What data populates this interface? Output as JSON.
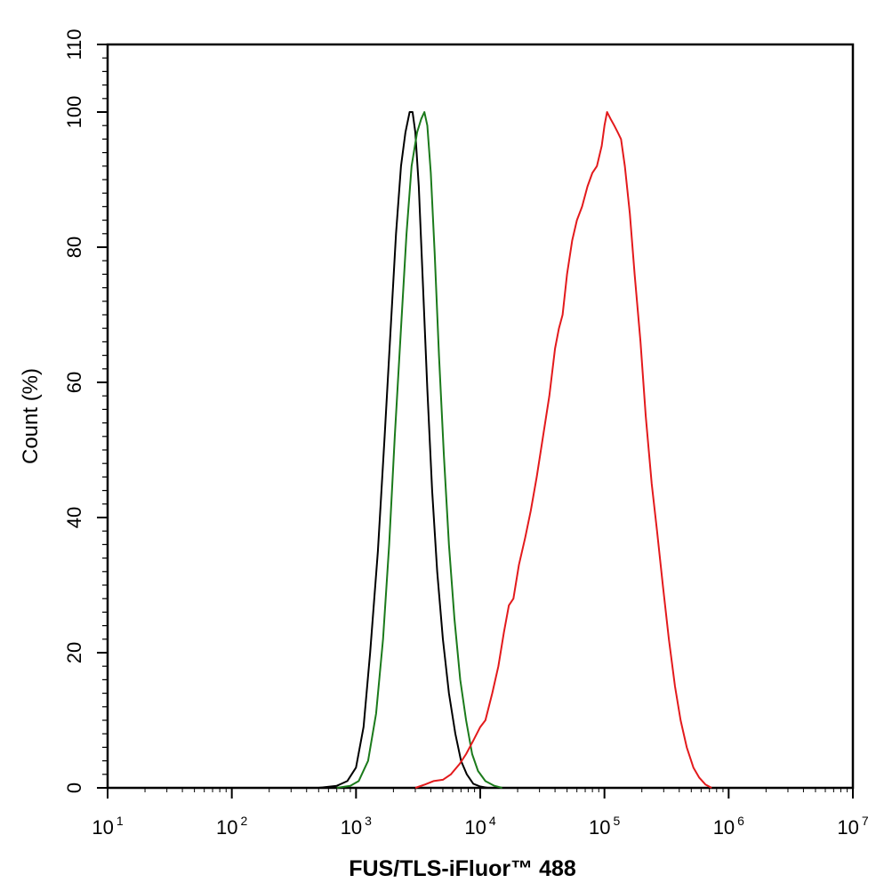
{
  "chart_data": {
    "type": "line",
    "title": "",
    "xlabel": "FUS/TLS-iFluor™ 488",
    "ylabel": "Count  (%)",
    "xscale": "log",
    "xlim": [
      10,
      10000000
    ],
    "ylim": [
      0,
      110
    ],
    "grid": false,
    "legend": "none",
    "x_ticks": [
      {
        "value": 10,
        "base": "10",
        "exp": "1"
      },
      {
        "value": 100,
        "base": "10",
        "exp": "2"
      },
      {
        "value": 1000,
        "base": "10",
        "exp": "3"
      },
      {
        "value": 10000,
        "base": "10",
        "exp": "4"
      },
      {
        "value": 100000,
        "base": "10",
        "exp": "5"
      },
      {
        "value": 1000000,
        "base": "10",
        "exp": "6"
      },
      {
        "value": 10000000,
        "base": "10",
        "exp": "7"
      }
    ],
    "y_ticks": [
      0,
      20,
      40,
      60,
      80,
      100,
      110
    ],
    "series": [
      {
        "color": "#000000",
        "points": [
          [
            500,
            0
          ],
          [
            700,
            0.3
          ],
          [
            850,
            1
          ],
          [
            1000,
            3
          ],
          [
            1150,
            9
          ],
          [
            1300,
            20
          ],
          [
            1500,
            35
          ],
          [
            1700,
            52
          ],
          [
            1900,
            68
          ],
          [
            2100,
            82
          ],
          [
            2300,
            92
          ],
          [
            2500,
            97
          ],
          [
            2700,
            100
          ],
          [
            2850,
            100
          ],
          [
            3000,
            97
          ],
          [
            3200,
            89
          ],
          [
            3450,
            75
          ],
          [
            3750,
            59
          ],
          [
            4100,
            44
          ],
          [
            4500,
            32
          ],
          [
            5000,
            22
          ],
          [
            5600,
            14
          ],
          [
            6300,
            8
          ],
          [
            7000,
            4
          ],
          [
            7800,
            2
          ],
          [
            8800,
            0.6
          ],
          [
            10000,
            0.2
          ],
          [
            11500,
            0
          ]
        ]
      },
      {
        "color": "#1b7a1b",
        "points": [
          [
            700,
            0
          ],
          [
            900,
            0.3
          ],
          [
            1050,
            1
          ],
          [
            1250,
            4
          ],
          [
            1450,
            11
          ],
          [
            1650,
            22
          ],
          [
            1850,
            36
          ],
          [
            2050,
            52
          ],
          [
            2300,
            68
          ],
          [
            2550,
            82
          ],
          [
            2800,
            92
          ],
          [
            3100,
            97
          ],
          [
            3350,
            99
          ],
          [
            3550,
            100
          ],
          [
            3750,
            98
          ],
          [
            4000,
            91
          ],
          [
            4300,
            79
          ],
          [
            4650,
            64
          ],
          [
            5100,
            49
          ],
          [
            5600,
            36
          ],
          [
            6200,
            25
          ],
          [
            6900,
            16
          ],
          [
            7700,
            10
          ],
          [
            8600,
            5
          ],
          [
            9600,
            2.5
          ],
          [
            11000,
            1
          ],
          [
            13000,
            0.3
          ],
          [
            15000,
            0
          ]
        ]
      },
      {
        "color": "#e31a1c",
        "points": [
          [
            3000,
            0
          ],
          [
            3600,
            0.5
          ],
          [
            4200,
            1
          ],
          [
            5000,
            1.2
          ],
          [
            5800,
            2
          ],
          [
            6800,
            3.5
          ],
          [
            7700,
            5
          ],
          [
            8800,
            7
          ],
          [
            10000,
            9
          ],
          [
            11000,
            10
          ],
          [
            12500,
            14
          ],
          [
            14000,
            18
          ],
          [
            15500,
            23
          ],
          [
            17000,
            27
          ],
          [
            18500,
            28
          ],
          [
            20500,
            33
          ],
          [
            23000,
            37
          ],
          [
            25500,
            41
          ],
          [
            28500,
            46
          ],
          [
            32000,
            52
          ],
          [
            36000,
            58
          ],
          [
            40000,
            65
          ],
          [
            43000,
            68
          ],
          [
            46000,
            70
          ],
          [
            50000,
            76
          ],
          [
            55000,
            81
          ],
          [
            60000,
            84
          ],
          [
            66000,
            86
          ],
          [
            73000,
            89
          ],
          [
            80000,
            91
          ],
          [
            87000,
            92
          ],
          [
            95000,
            95
          ],
          [
            100000,
            98
          ],
          [
            105000,
            100
          ],
          [
            112000,
            99
          ],
          [
            120000,
            98
          ],
          [
            128000,
            97
          ],
          [
            136000,
            96
          ],
          [
            146000,
            92
          ],
          [
            160000,
            85
          ],
          [
            175000,
            76
          ],
          [
            195000,
            66
          ],
          [
            215000,
            55
          ],
          [
            240000,
            45
          ],
          [
            265000,
            38
          ],
          [
            295000,
            30
          ],
          [
            330000,
            22
          ],
          [
            370000,
            15
          ],
          [
            410000,
            10
          ],
          [
            460000,
            6
          ],
          [
            520000,
            3
          ],
          [
            580000,
            1.5
          ],
          [
            650000,
            0.5
          ],
          [
            730000,
            0
          ]
        ]
      }
    ]
  }
}
